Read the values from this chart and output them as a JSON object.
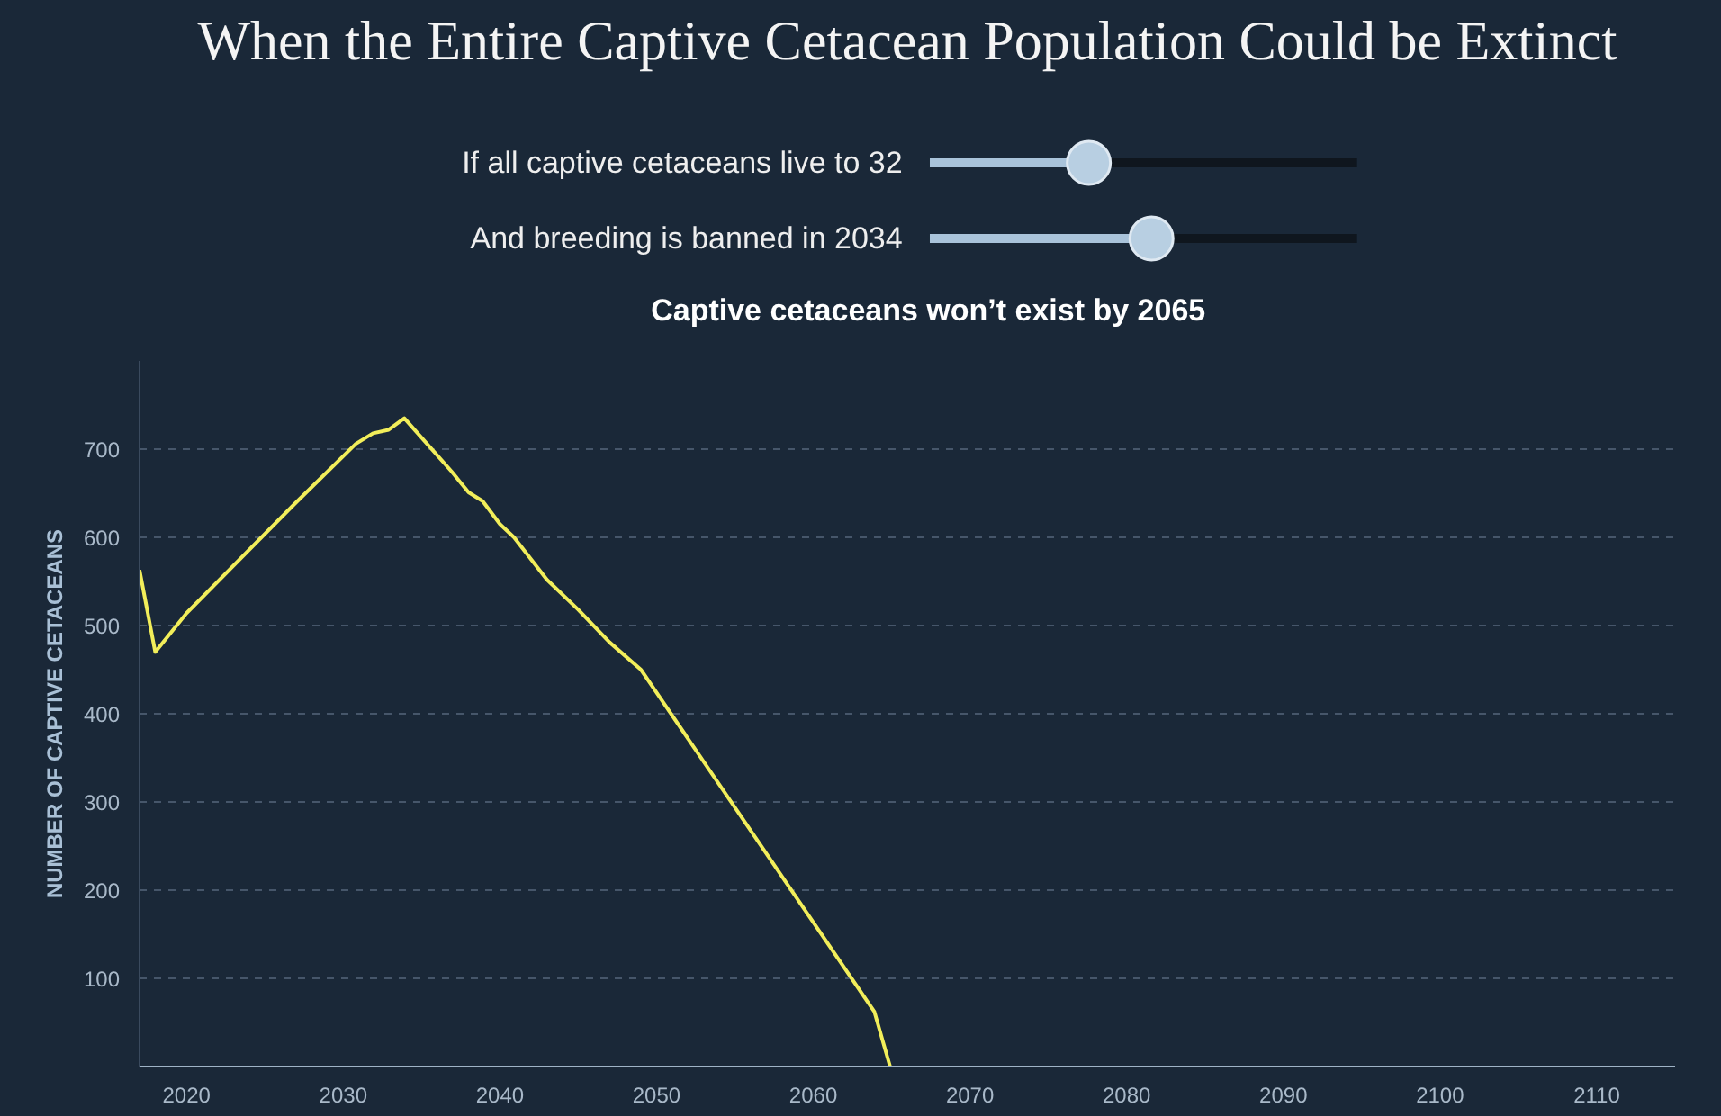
{
  "chart_data": {
    "type": "line",
    "title": "When the Entire Captive Cetacean Population Could be Extinct",
    "annotations": [
      "If all captive cetaceans live to 32",
      "And breeding is banned in 2034",
      "Captive cetaceans won’t exist by 2065"
    ],
    "ylabel": "NUMBER OF CAPTIVE CETACEANS",
    "x": [
      2017,
      2018,
      2020,
      2026.9,
      2030.8,
      2031.9,
      2032.9,
      2033.9,
      2036.9,
      2038,
      2038.9,
      2040,
      2040.9,
      2043,
      2045,
      2047,
      2049,
      2063.9,
      2064.9
    ],
    "series": [
      {
        "color": "#f2ee5a",
        "values": [
          563,
          470,
          514,
          638,
          706,
          718,
          722,
          735,
          675,
          651,
          641,
          615,
          600,
          552,
          518,
          481,
          450,
          62,
          0
        ]
      }
    ],
    "xlim": [
      2017,
      2115
    ],
    "ylim": [
      0,
      800
    ],
    "xticks": [
      2020,
      2030,
      2040,
      2050,
      2060,
      2070,
      2080,
      2090,
      2100,
      2110
    ],
    "yticks": [
      100,
      200,
      300,
      400,
      500,
      600,
      700
    ],
    "grid": "y",
    "line_style": "solid",
    "marker": "none"
  }
}
